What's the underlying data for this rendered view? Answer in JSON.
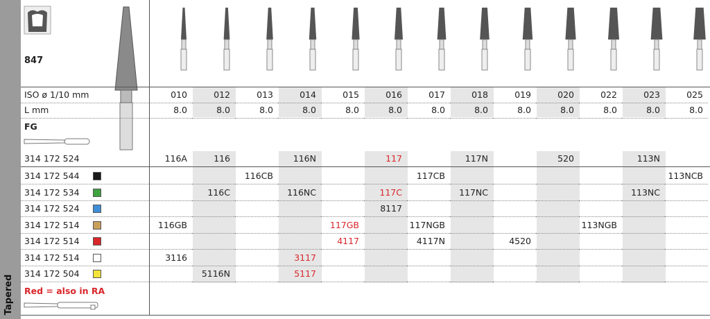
{
  "sidebar_label": "Tapered",
  "header": {
    "code": "847"
  },
  "iso_label": "ISO ø 1/10 mm",
  "sizes": [
    "010",
    "012",
    "013",
    "014",
    "015",
    "016",
    "017",
    "018",
    "019",
    "020",
    "022",
    "023",
    "025"
  ],
  "length_label": "L mm",
  "lengths": [
    "8.0",
    "8.0",
    "8.0",
    "8.0",
    "8.0",
    "8.0",
    "8.0",
    "8.0",
    "8.0",
    "8.0",
    "8.0",
    "8.0",
    "8.0"
  ],
  "shank": "FG",
  "rows": [
    {
      "article": "314 172 524",
      "swatch": null,
      "cells": [
        "116A",
        "116",
        null,
        "116N",
        null,
        "117",
        null,
        "117N",
        null,
        "520",
        null,
        "113N",
        null
      ],
      "red": [
        5
      ]
    },
    {
      "article": "314 172 544",
      "swatch": "#1a1a1a",
      "cells": [
        null,
        null,
        "116CB",
        null,
        null,
        null,
        "117CB",
        null,
        null,
        null,
        null,
        null,
        "113NCB"
      ],
      "red": []
    },
    {
      "article": "314 172 534",
      "swatch": "#3fa23f",
      "cells": [
        null,
        "116C",
        null,
        "116NC",
        null,
        "117C",
        null,
        "117NC",
        null,
        null,
        null,
        "113NC",
        null
      ],
      "red": [
        5
      ]
    },
    {
      "article": "314 172 524",
      "swatch": "#3f8fd8",
      "cells": [
        null,
        null,
        null,
        null,
        null,
        "8117",
        null,
        null,
        null,
        null,
        null,
        null,
        null
      ],
      "red": []
    },
    {
      "article": "314 172 514",
      "swatch": "#c9a05a",
      "cells": [
        "116GB",
        null,
        null,
        null,
        "117GB",
        null,
        "117NGB",
        null,
        null,
        null,
        "113NGB",
        null,
        null
      ],
      "red": [
        4
      ]
    },
    {
      "article": "314 172 514",
      "swatch": "#d9262b",
      "cells": [
        null,
        null,
        null,
        null,
        "4117",
        null,
        "4117N",
        null,
        "4520",
        null,
        null,
        null,
        null
      ],
      "red": [
        4
      ]
    },
    {
      "article": "314 172 514",
      "swatch": "#ffffff",
      "cells": [
        "3116",
        null,
        null,
        "3117",
        null,
        null,
        null,
        null,
        null,
        null,
        null,
        null,
        null
      ],
      "red": [
        3
      ]
    },
    {
      "article": "314 172 504",
      "swatch": "#f2e23a",
      "cells": [
        null,
        "5116N",
        null,
        "5117",
        null,
        null,
        null,
        null,
        null,
        null,
        null,
        null,
        null
      ],
      "red": [
        3
      ]
    }
  ],
  "note": "Red = also in RA"
}
